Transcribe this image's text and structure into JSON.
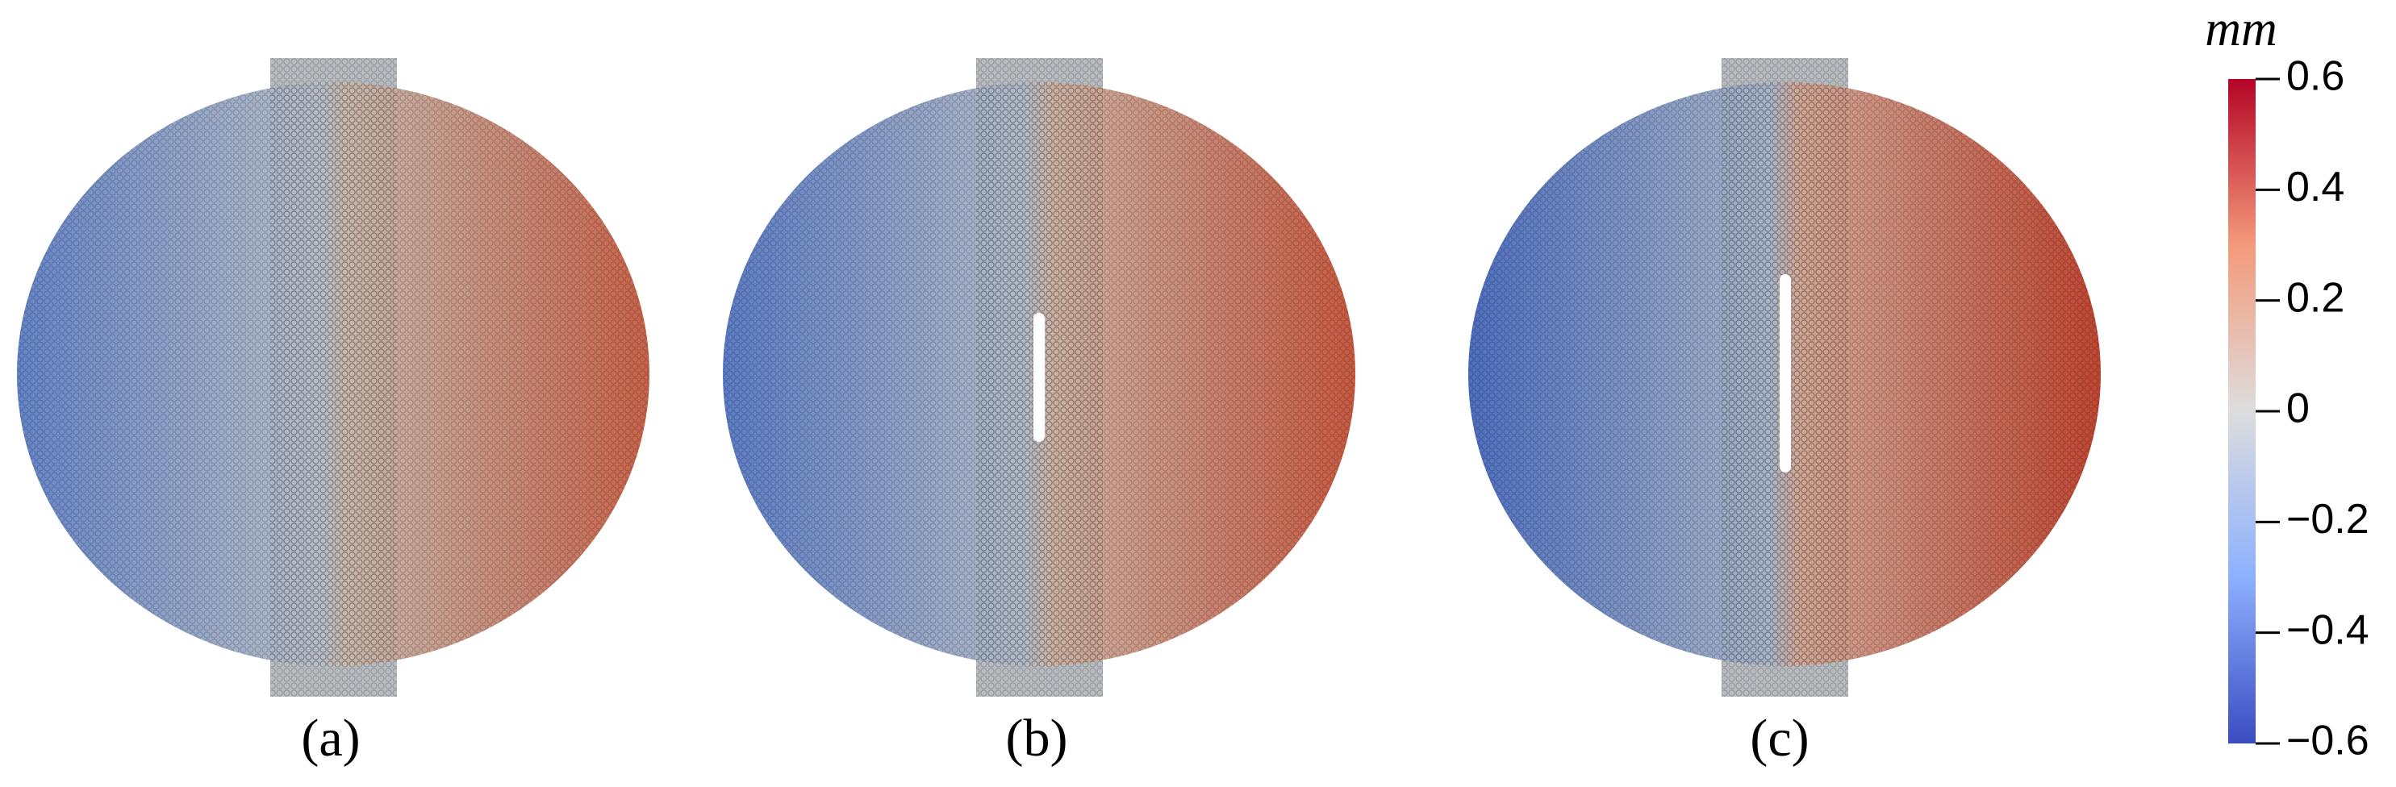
{
  "panels": [
    {
      "label": "(a)"
    },
    {
      "label": "(b)"
    },
    {
      "label": "(c)"
    }
  ],
  "colorbar": {
    "title": "mm",
    "lim": [
      -0.6,
      0.6
    ],
    "ticks": [
      0.6,
      0.4,
      0.2,
      0,
      {
        "value": -0.2,
        "label": "−0.2"
      },
      {
        "value": -0.4,
        "label": "−0.4"
      },
      {
        "value": -0.6,
        "label": "−0.6"
      }
    ]
  }
}
